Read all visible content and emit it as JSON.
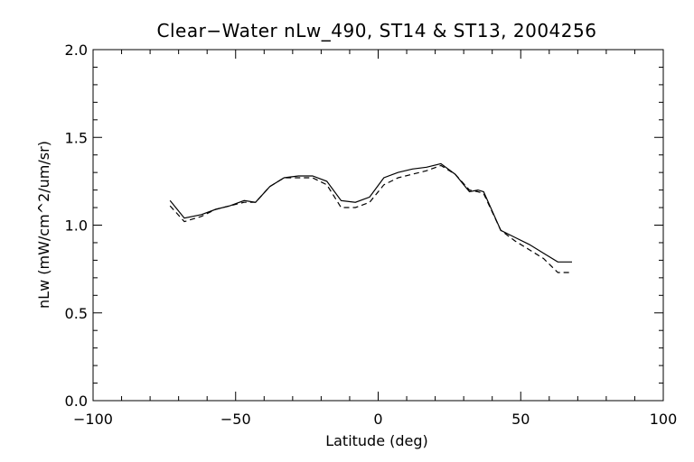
{
  "chart_data": {
    "type": "line",
    "title": "Clear−Water nLw_490, ST14 & ST13, 2004256",
    "xlabel": "Latitude (deg)",
    "ylabel": "nLw (mW/cm^2/um/sr)",
    "xlim": [
      -100,
      100
    ],
    "ylim": [
      0.0,
      2.0
    ],
    "x_ticks": [
      -100,
      -50,
      0,
      50,
      100
    ],
    "x_tick_labels": [
      "−100",
      "−50",
      "0",
      "50",
      "100"
    ],
    "y_ticks": [
      0.0,
      0.5,
      1.0,
      1.5,
      2.0
    ],
    "y_tick_labels": [
      "0.0",
      "0.5",
      "1.0",
      "1.5",
      "2.0"
    ],
    "grid": false,
    "colors": {
      "line": "#000000",
      "background": "#ffffff"
    },
    "series": [
      {
        "style": "solid",
        "x": [
          -73,
          -68,
          -62,
          -57,
          -52,
          -47,
          -43,
          -38,
          -33,
          -28,
          -23,
          -18,
          -13,
          -8,
          -3,
          2,
          7,
          12,
          17,
          22,
          27,
          32,
          35,
          37,
          43,
          48,
          53,
          58,
          63,
          68
        ],
        "y": [
          1.14,
          1.04,
          1.06,
          1.09,
          1.11,
          1.14,
          1.13,
          1.22,
          1.27,
          1.28,
          1.28,
          1.25,
          1.14,
          1.13,
          1.16,
          1.27,
          1.3,
          1.32,
          1.33,
          1.35,
          1.29,
          1.19,
          1.2,
          1.19,
          0.97,
          0.93,
          0.89,
          0.84,
          0.79,
          0.79
        ]
      },
      {
        "style": "dashed",
        "x": [
          -73,
          -68,
          -62,
          -57,
          -52,
          -47,
          -43,
          -38,
          -33,
          -28,
          -23,
          -18,
          -13,
          -8,
          -3,
          2,
          7,
          12,
          17,
          22,
          27,
          32,
          35,
          37,
          43,
          48,
          53,
          58,
          63,
          68
        ],
        "y": [
          1.11,
          1.02,
          1.05,
          1.09,
          1.11,
          1.13,
          1.13,
          1.22,
          1.27,
          1.27,
          1.27,
          1.23,
          1.1,
          1.1,
          1.13,
          1.23,
          1.27,
          1.29,
          1.31,
          1.34,
          1.29,
          1.2,
          1.19,
          1.18,
          0.97,
          0.91,
          0.86,
          0.81,
          0.73,
          0.73
        ]
      }
    ]
  }
}
